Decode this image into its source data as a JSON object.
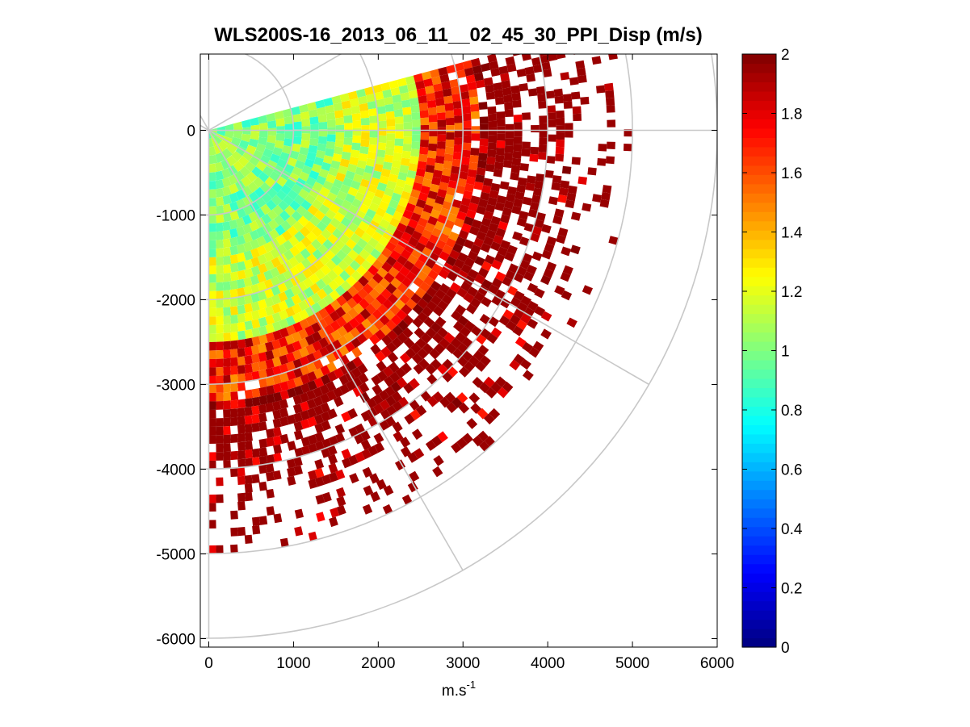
{
  "figure": {
    "title": "WLS200S-16_2013_06_11__02_45_30_PPI_Disp (m/s)"
  },
  "chart_data": {
    "type": "heatmap",
    "subtype": "ppi-polar-sector",
    "title": "WLS200S-16_2013_06_11__02_45_30_PPI_Disp (m/s)",
    "xlabel": "m.s",
    "xlabel_superscript": "-1",
    "ylabel": "",
    "xlim": [
      -100,
      6000
    ],
    "ylim": [
      -6100,
      900
    ],
    "x_ticks": [
      0,
      1000,
      2000,
      3000,
      4000,
      5000,
      6000
    ],
    "x_tick_labels": [
      "0",
      "1000",
      "2000",
      "3000",
      "4000",
      "5000",
      "6000"
    ],
    "y_ticks": [
      0,
      -1000,
      -2000,
      -3000,
      -4000,
      -5000,
      -6000
    ],
    "y_tick_labels": [
      "0",
      "-1000",
      "-2000",
      "-3000",
      "-4000",
      "-5000",
      "-6000"
    ],
    "polar_grid": {
      "origin": [
        0,
        0
      ],
      "range_rings": [
        1000,
        2000,
        3000,
        4000,
        5000,
        6000
      ],
      "spoke_angles_deg": [
        30,
        0,
        -30,
        -60,
        -90
      ]
    },
    "colorbar": {
      "min": 0,
      "max": 2,
      "colormap": "jet",
      "ticks": [
        0,
        0.2,
        0.4,
        0.6,
        0.8,
        1,
        1.2,
        1.4,
        1.6,
        1.8,
        2
      ],
      "tick_labels": [
        "0",
        "0.2",
        "0.4",
        "0.6",
        "0.8",
        "1",
        "1.2",
        "1.4",
        "1.6",
        "1.8",
        "2"
      ]
    },
    "sector": {
      "azimuth_start_deg": 15,
      "azimuth_end_deg": -90,
      "range_max_m": 5000
    },
    "value_bands": [
      {
        "range_from": 0,
        "range_to": 1500,
        "typical_value": 1.0
      },
      {
        "range_from": 1500,
        "range_to": 2500,
        "typical_value": 1.15
      },
      {
        "range_from": 2500,
        "range_to": 3200,
        "typical_value": 1.7
      },
      {
        "range_from": 3200,
        "range_to": 5000,
        "typical_value": 1.95
      }
    ]
  }
}
